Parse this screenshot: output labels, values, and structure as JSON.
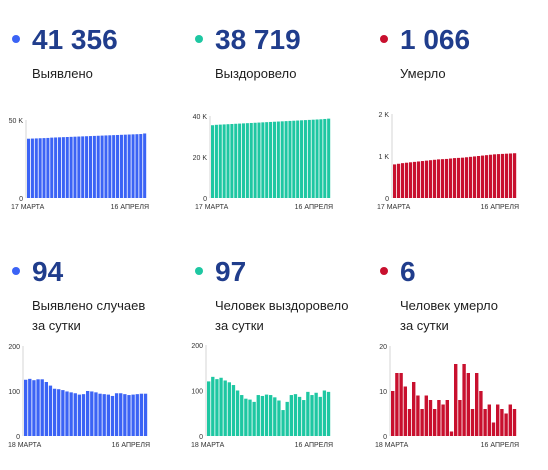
{
  "panels": [
    {
      "value": "41 356",
      "label": "Выявлено",
      "color": "#3b63f5",
      "chart_data": {
        "type": "bar",
        "series_name": "",
        "x_labels": [
          "17 МАРТА",
          "16 АПРЕЛЯ"
        ],
        "ytick_labels": [
          "50 K",
          "0"
        ],
        "ylim": [
          0,
          50000
        ],
        "values": [
          38000,
          38100,
          38200,
          38300,
          38400,
          38500,
          38700,
          38800,
          38900,
          39000,
          39100,
          39200,
          39300,
          39400,
          39500,
          39600,
          39700,
          39800,
          39900,
          40000,
          40100,
          40200,
          40300,
          40400,
          40500,
          40600,
          40700,
          40800,
          40900,
          41000,
          41356
        ]
      }
    },
    {
      "value": "38 719",
      "label": "Выздоровело",
      "color": "#1ec7a2",
      "chart_data": {
        "type": "bar",
        "series_name": "",
        "x_labels": [
          "17 МАРТА",
          "16 АПРЕЛЯ"
        ],
        "ytick_labels": [
          "40 K",
          "20 K",
          "0"
        ],
        "ylim": [
          0,
          40000
        ],
        "values": [
          35500,
          35700,
          35800,
          35900,
          36000,
          36100,
          36200,
          36300,
          36400,
          36500,
          36600,
          36700,
          36800,
          36900,
          37000,
          37100,
          37200,
          37300,
          37400,
          37500,
          37600,
          37700,
          37800,
          37900,
          38000,
          38100,
          38200,
          38300,
          38400,
          38550,
          38719
        ]
      }
    },
    {
      "value": "1 066",
      "label": "Умерло",
      "color": "#c8102e",
      "chart_data": {
        "type": "bar",
        "series_name": "",
        "x_labels": [
          "17 МАРТА",
          "16 АПРЕЛЯ"
        ],
        "ytick_labels": [
          "2 K",
          "1 K",
          "0"
        ],
        "ylim": [
          0,
          2000
        ],
        "values": [
          800,
          815,
          830,
          840,
          850,
          860,
          870,
          880,
          890,
          900,
          910,
          920,
          925,
          930,
          940,
          950,
          955,
          960,
          970,
          980,
          990,
          1000,
          1010,
          1020,
          1030,
          1040,
          1045,
          1050,
          1055,
          1060,
          1066
        ]
      }
    },
    {
      "value": "94",
      "label": "Выявлено случаев\nза сутки",
      "color": "#3b63f5",
      "chart_data": {
        "type": "bar",
        "series_name": "",
        "x_labels": [
          "18 МАРТА",
          "16 АПРЕЛЯ"
        ],
        "ytick_labels": [
          "200",
          "100",
          "0"
        ],
        "ylim": [
          0,
          200
        ],
        "values": [
          125,
          127,
          124,
          126,
          126,
          120,
          112,
          105,
          104,
          102,
          99,
          97,
          95,
          92,
          93,
          100,
          99,
          97,
          94,
          93,
          92,
          89,
          95,
          95,
          93,
          91,
          92,
          93,
          94,
          94
        ]
      }
    },
    {
      "value": "97",
      "label": "Человек выздоровело\nза сутки",
      "color": "#1ec7a2",
      "chart_data": {
        "type": "bar",
        "series_name": "",
        "x_labels": [
          "18 МАРТА",
          "16 АПРЕЛЯ"
        ],
        "ytick_labels": [
          "200",
          "100",
          "0"
        ],
        "ylim": [
          0,
          200
        ],
        "values": [
          120,
          130,
          125,
          128,
          122,
          118,
          112,
          100,
          90,
          82,
          80,
          75,
          90,
          88,
          91,
          90,
          85,
          78,
          57,
          75,
          90,
          92,
          86,
          79,
          97,
          90,
          95,
          86,
          100,
          97
        ]
      }
    },
    {
      "value": "6",
      "label": "Человек умерло\nза сутки",
      "color": "#c8102e",
      "chart_data": {
        "type": "bar",
        "series_name": "",
        "x_labels": [
          "18 МАРТА",
          "16 АПРЕЛЯ"
        ],
        "ytick_labels": [
          "20",
          "10",
          "0"
        ],
        "ylim": [
          0,
          20
        ],
        "values": [
          10,
          14,
          14,
          11,
          6,
          12,
          9,
          6,
          9,
          8,
          6,
          8,
          7,
          8,
          1,
          16,
          8,
          16,
          14,
          6,
          14,
          10,
          6,
          7,
          3,
          7,
          6,
          5,
          7,
          6
        ]
      }
    }
  ]
}
